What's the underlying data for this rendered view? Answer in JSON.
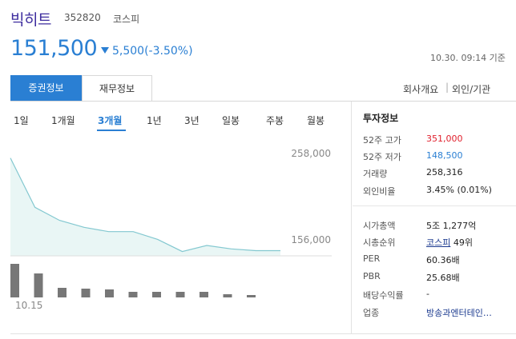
{
  "header": {
    "name": "빅히트",
    "code": "352820",
    "market": "코스피",
    "price": "151,500",
    "change": "5,500(-3.50%)",
    "timestamp": "10.30. 09:14 기준",
    "colors": {
      "name": "#3d2c9e",
      "down": "#2a7fd3",
      "up": "#e0202d"
    }
  },
  "tabs": {
    "active": "증권정보",
    "inactive": "재무정보"
  },
  "sublinks": {
    "company": "회사개요",
    "separator": "|",
    "foreign": "외인/기관"
  },
  "periods": [
    "1일",
    "1개월",
    "3개월",
    "1년",
    "3년",
    "일봉",
    "주봉",
    "월봉"
  ],
  "active_period": "3개월",
  "chart_data": {
    "type": "area",
    "series": [
      {
        "values": [
          253000,
          196000,
          181000,
          173000,
          168000,
          168000,
          159000,
          145000,
          152000,
          148000,
          146000,
          146000
        ]
      }
    ],
    "y_ticks": [
      "258,000",
      "156,000"
    ],
    "ylim": [
      140000,
      260000
    ],
    "x_tick": "10.15",
    "volume": [
      42,
      30,
      12,
      11,
      10,
      7,
      7,
      7,
      7,
      4,
      3
    ],
    "line_color": "#83c8d0",
    "fill_color": "#e9f6f5",
    "bar_color": "#777777"
  },
  "info": {
    "title": "투자정보",
    "rows1": [
      {
        "label": "52주 고가",
        "value": "351,000"
      },
      {
        "label": "52주 저가",
        "value": "148,500"
      },
      {
        "label": "거래량",
        "value": "258,316"
      },
      {
        "label": "외인비율",
        "value": "3.45% (0.01%)"
      }
    ],
    "rows2": [
      {
        "label": "시가총액",
        "value": "5조 1,277억"
      },
      {
        "label": "시총순위",
        "value_link": "코스피",
        "value_rest": "49위"
      },
      {
        "label": "PER",
        "value": "60.36배"
      },
      {
        "label": "PBR",
        "value": "25.68배"
      },
      {
        "label": "배당수익률",
        "value": "-"
      },
      {
        "label": "업종",
        "value": "방송과엔터테인…"
      }
    ]
  }
}
